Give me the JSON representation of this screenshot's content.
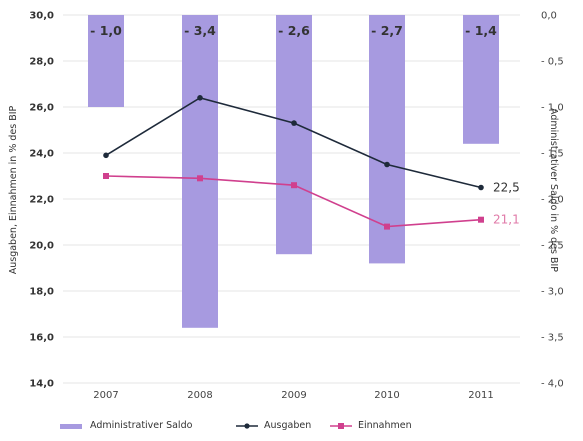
{
  "chart_data": {
    "type": "bar+line",
    "categories": [
      "2007",
      "2008",
      "2009",
      "2010",
      "2011"
    ],
    "bar_series": {
      "name": "Administrativer Saldo",
      "values": [
        -1.0,
        -3.4,
        -2.6,
        -2.7,
        -1.4
      ],
      "labels": [
        "- 1,0",
        "- 3,4",
        "- 2,6",
        "- 2,7",
        "- 1,4"
      ],
      "axis": "right",
      "color": "#a79ae0"
    },
    "line_series": [
      {
        "name": "Ausgaben",
        "values": [
          23.9,
          26.4,
          25.3,
          23.5,
          22.5
        ],
        "color": "#1e2a3a",
        "end_label": "22,5"
      },
      {
        "name": "Einnahmen",
        "values": [
          23.0,
          22.9,
          22.6,
          20.8,
          21.1
        ],
        "color": "#d0408e",
        "end_label": "21,1"
      }
    ],
    "left_axis": {
      "label": "Ausgaben, Einnahmen in % des BIP",
      "ylim": [
        14.0,
        30.0
      ],
      "ticks": [
        30.0,
        28.0,
        26.0,
        24.0,
        22.0,
        20.0,
        18.0,
        16.0,
        14.0
      ],
      "tick_labels": [
        "30,0",
        "28,0",
        "26,0",
        "24,0",
        "22,0",
        "20,0",
        "18,0",
        "16,0",
        "14,0"
      ]
    },
    "right_axis": {
      "label": "Administrativer Saldo in % des BIP",
      "ylim": [
        -4.0,
        0.0
      ],
      "ticks": [
        0.0,
        -0.5,
        -1.0,
        -1.5,
        -2.0,
        -2.5,
        -3.0,
        -3.5,
        -4.0
      ],
      "tick_labels": [
        "0,0",
        "- 0,5",
        "- 1,0",
        "- 1,5",
        "- 2,0",
        "- 2,5",
        "- 3,0",
        "- 3,5",
        "- 4,0"
      ]
    },
    "grid": true,
    "legend_placement": "bottom",
    "legend": [
      {
        "name": "Administrativer Saldo",
        "kind": "bar"
      },
      {
        "name": "Ausgaben",
        "kind": "line"
      },
      {
        "name": "Einnahmen",
        "kind": "line"
      }
    ]
  }
}
